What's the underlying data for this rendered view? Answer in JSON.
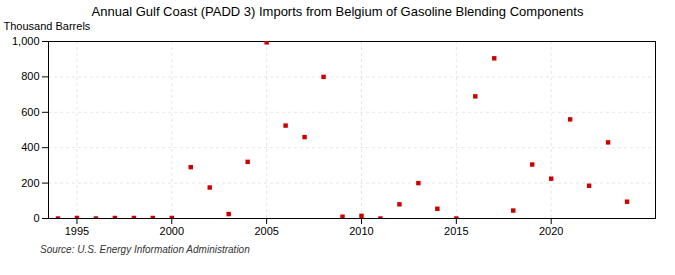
{
  "chart_data": {
    "type": "scatter",
    "title": "Annual Gulf Coast (PADD 3) Imports from Belgium of Gasoline Blending Components",
    "ylabel": "Thousand Barrels",
    "source": "Source: U.S. Energy Information Administration",
    "color": "#cc0000",
    "marker": "square",
    "x": [
      1994,
      1995,
      1996,
      1997,
      1998,
      1999,
      2000,
      2001,
      2002,
      2003,
      2004,
      2005,
      2006,
      2007,
      2008,
      2009,
      2010,
      2011,
      2012,
      2013,
      2014,
      2015,
      2016,
      2017,
      2018,
      2019,
      2020,
      2021,
      2022,
      2023,
      2024
    ],
    "values": [
      0,
      3,
      0,
      3,
      3,
      3,
      3,
      290,
      175,
      25,
      320,
      995,
      525,
      460,
      800,
      10,
      15,
      0,
      80,
      200,
      55,
      0,
      690,
      905,
      45,
      305,
      225,
      560,
      185,
      430,
      95
    ],
    "xlim": [
      1993.5,
      2025.5
    ],
    "ylim": [
      0,
      1000
    ],
    "xticks": [
      1995,
      2000,
      2005,
      2010,
      2015,
      2020
    ],
    "yticks": [
      0,
      200,
      400,
      600,
      800,
      {
        "value": 1000,
        "label": "1,000"
      }
    ],
    "grid": true
  }
}
